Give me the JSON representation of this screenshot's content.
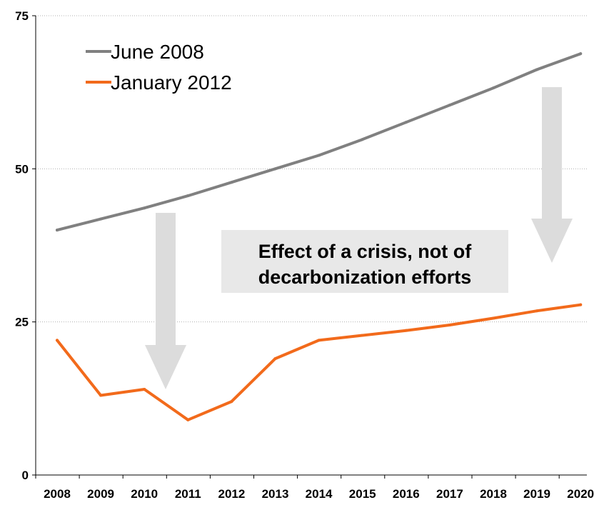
{
  "chart_data": {
    "type": "line",
    "title": "",
    "xlabel": "",
    "ylabel": "",
    "categories": [
      "2008",
      "2009",
      "2010",
      "2011",
      "2012",
      "2013",
      "2014",
      "2015",
      "2016",
      "2017",
      "2018",
      "2019",
      "2020"
    ],
    "y_ticks": [
      "0",
      "25",
      "50",
      "75"
    ],
    "ylim": [
      0,
      75
    ],
    "grid": "horizontal dotted",
    "legend_position": "top-left",
    "series": [
      {
        "name": "June 2008",
        "color": "#808080",
        "values": [
          40,
          41.8,
          43.6,
          45.6,
          47.8,
          50,
          52.2,
          54.8,
          57.6,
          60.4,
          63.2,
          66.2,
          68.8
        ]
      },
      {
        "name": "January 2012",
        "color": "#f26a1b",
        "values": [
          22,
          13,
          14,
          9,
          12,
          19,
          22,
          22.8,
          23.6,
          24.5,
          25.6,
          26.8,
          27.8
        ]
      }
    ],
    "annotation": {
      "lines": [
        "Effect of a crisis, not of",
        "decarbonization efforts"
      ]
    },
    "arrow_color": "#dcdcdc"
  }
}
